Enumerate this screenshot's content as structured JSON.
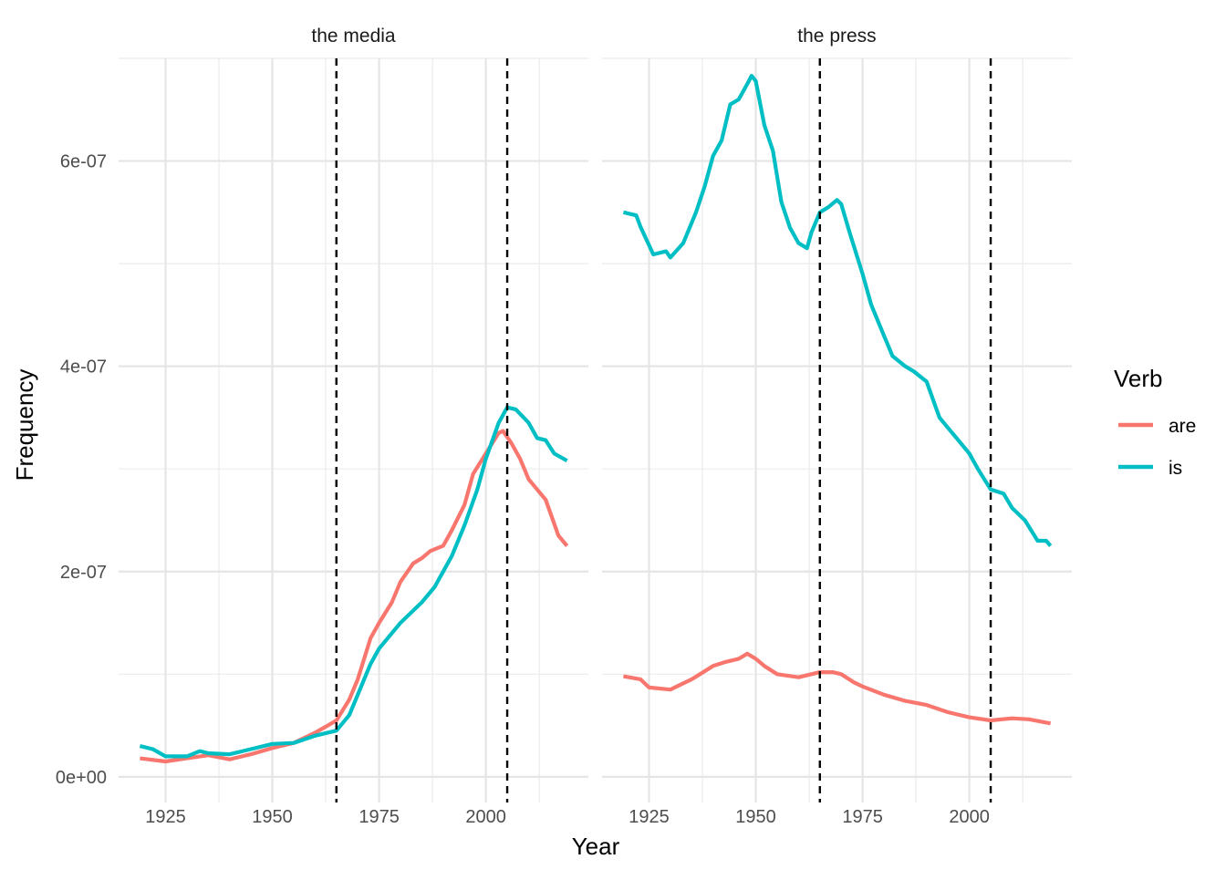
{
  "chart_data": {
    "type": "line",
    "xlabel": "Year",
    "ylabel": "Frequency",
    "xlim": [
      1914,
      2024
    ],
    "ylim": [
      -2.5e-08,
      7e-07
    ],
    "x_ticks": [
      1925,
      1950,
      1975,
      2000
    ],
    "x_tick_labels": [
      "1925",
      "1950",
      "1975",
      "2000"
    ],
    "y_ticks": [
      0,
      2e-07,
      4e-07,
      6e-07
    ],
    "y_tick_labels": [
      "0e+00",
      "2e-07",
      "4e-07",
      "6e-07"
    ],
    "grid": true,
    "vlines": [
      1965,
      2005
    ],
    "legend": {
      "title": "Verb",
      "position": "right",
      "entries": [
        "are",
        "is"
      ]
    },
    "colors": {
      "are": "#F8766D",
      "is": "#00BFC4"
    },
    "facets": [
      {
        "title": "the media",
        "series": [
          {
            "name": "are",
            "x": [
              1919,
              1925,
              1930,
              1935,
              1940,
              1945,
              1950,
              1955,
              1960,
              1963,
              1965,
              1968,
              1970,
              1973,
              1975,
              1978,
              1980,
              1983,
              1985,
              1987,
              1990,
              1992,
              1995,
              1997,
              2000,
              2003,
              2004,
              2006,
              2008,
              2010,
              2012,
              2014,
              2017,
              2019
            ],
            "y": [
              0.18,
              0.15,
              0.18,
              0.21,
              0.17,
              0.22,
              0.28,
              0.33,
              0.43,
              0.5,
              0.55,
              0.75,
              0.95,
              1.35,
              1.5,
              1.7,
              1.9,
              2.08,
              2.13,
              2.2,
              2.25,
              2.4,
              2.65,
              2.95,
              3.15,
              3.35,
              3.37,
              3.25,
              3.1,
              2.9,
              2.8,
              2.7,
              2.35,
              2.25
            ]
          },
          {
            "name": "is",
            "x": [
              1919,
              1922,
              1925,
              1930,
              1933,
              1935,
              1940,
              1945,
              1950,
              1955,
              1960,
              1965,
              1968,
              1970,
              1973,
              1975,
              1978,
              1980,
              1985,
              1988,
              1990,
              1992,
              1995,
              1998,
              2000,
              2003,
              2005,
              2007,
              2010,
              2012,
              2014,
              2016,
              2019
            ],
            "y": [
              0.3,
              0.27,
              0.2,
              0.2,
              0.25,
              0.23,
              0.22,
              0.27,
              0.32,
              0.33,
              0.4,
              0.45,
              0.6,
              0.8,
              1.1,
              1.25,
              1.4,
              1.5,
              1.7,
              1.85,
              2.0,
              2.15,
              2.45,
              2.8,
              3.1,
              3.45,
              3.6,
              3.58,
              3.45,
              3.3,
              3.28,
              3.15,
              3.08
            ]
          }
        ]
      },
      {
        "title": "the press",
        "series": [
          {
            "name": "are",
            "x": [
              1919,
              1923,
              1925,
              1930,
              1935,
              1940,
              1943,
              1946,
              1948,
              1950,
              1952,
              1955,
              1960,
              1965,
              1968,
              1970,
              1973,
              1975,
              1980,
              1985,
              1990,
              1995,
              2000,
              2005,
              2010,
              2014,
              2019
            ],
            "y": [
              0.98,
              0.95,
              0.87,
              0.85,
              0.95,
              1.08,
              1.12,
              1.15,
              1.2,
              1.15,
              1.08,
              1.0,
              0.97,
              1.02,
              1.02,
              1.0,
              0.92,
              0.88,
              0.8,
              0.74,
              0.7,
              0.63,
              0.58,
              0.55,
              0.57,
              0.56,
              0.52
            ]
          },
          {
            "name": "is",
            "x": [
              1919,
              1922,
              1923,
              1926,
              1929,
              1930,
              1933,
              1936,
              1938,
              1940,
              1942,
              1944,
              1946,
              1948,
              1949,
              1950,
              1952,
              1954,
              1956,
              1958,
              1960,
              1962,
              1963,
              1965,
              1967,
              1969,
              1970,
              1972,
              1975,
              1977,
              1980,
              1982,
              1985,
              1987,
              1990,
              1993,
              1995,
              1997,
              2000,
              2002,
              2005,
              2008,
              2010,
              2013,
              2016,
              2018,
              2019
            ],
            "y": [
              5.5,
              5.47,
              5.36,
              5.09,
              5.12,
              5.06,
              5.2,
              5.5,
              5.75,
              6.05,
              6.2,
              6.55,
              6.6,
              6.75,
              6.83,
              6.78,
              6.35,
              6.1,
              5.6,
              5.35,
              5.2,
              5.15,
              5.3,
              5.5,
              5.55,
              5.62,
              5.58,
              5.3,
              4.9,
              4.6,
              4.3,
              4.1,
              4.0,
              3.95,
              3.85,
              3.5,
              3.4,
              3.3,
              3.15,
              3.0,
              2.8,
              2.76,
              2.62,
              2.5,
              2.3,
              2.3,
              2.25
            ]
          }
        ]
      }
    ],
    "y_unit_multiplier": 1e-07
  }
}
